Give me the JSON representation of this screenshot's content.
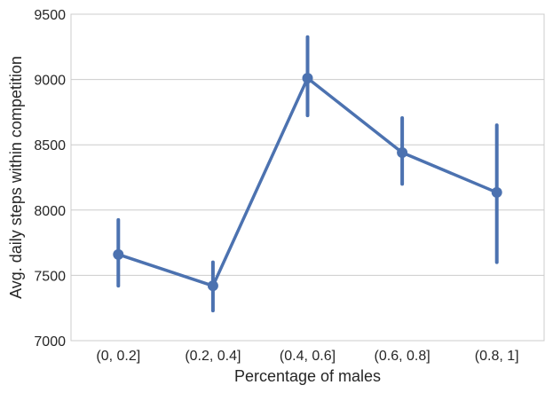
{
  "chart_data": {
    "type": "line",
    "title": "",
    "xlabel": "Percentage of males",
    "ylabel": "Avg. daily steps within competition",
    "categories": [
      "(0, 0.2]",
      "(0.2, 0.4]",
      "(0.4, 0.6]",
      "(0.6, 0.8]",
      "(0.8, 1]"
    ],
    "series": [
      {
        "values": [
          7660,
          7420,
          9010,
          8440,
          8135
        ],
        "error_low": [
          7420,
          7230,
          8725,
          8200,
          7600
        ],
        "error_high": [
          7925,
          7600,
          9325,
          8705,
          8650
        ]
      }
    ],
    "ylim": [
      7000,
      9500
    ],
    "yticks": [
      7000,
      7500,
      8000,
      8500,
      9000,
      9500
    ],
    "grid": true,
    "colors": {
      "series": "#4c72b0",
      "grid": "#cccccc",
      "axes": "#cccccc",
      "text": "#262626"
    }
  }
}
